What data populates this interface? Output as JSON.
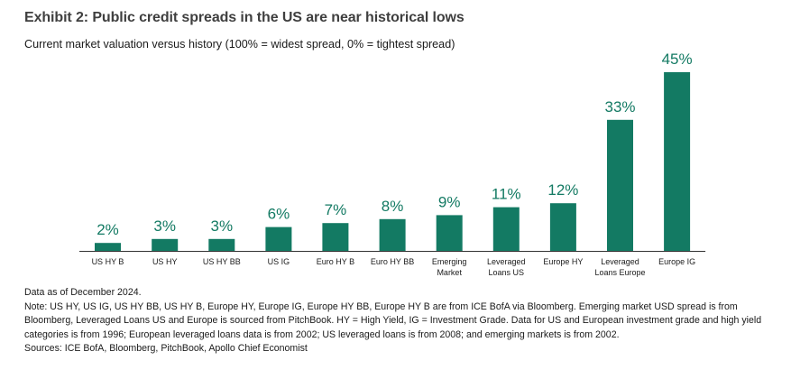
{
  "title": "Exhibit 2: Public credit spreads in the US are near historical lows",
  "subtitle": "Current market valuation versus history (100% = widest spread, 0% = tightest spread)",
  "colors": {
    "bar": "#137a63",
    "label": "#137a63",
    "axis": "#333333"
  },
  "chart_data": {
    "type": "bar",
    "categories": [
      [
        "US HY B"
      ],
      [
        "US HY"
      ],
      [
        "US HY BB"
      ],
      [
        "US IG"
      ],
      [
        "Euro HY B"
      ],
      [
        "Euro HY BB"
      ],
      [
        "Emerging",
        "Market"
      ],
      [
        "Leveraged",
        "Loans US"
      ],
      [
        "Europe HY"
      ],
      [
        "Leveraged",
        "Loans Europe"
      ],
      [
        "Europe IG"
      ]
    ],
    "values": [
      2,
      3,
      3,
      6,
      7,
      8,
      9,
      11,
      12,
      33,
      45
    ],
    "data_labels": [
      "2%",
      "3%",
      "3%",
      "6%",
      "7%",
      "8%",
      "9%",
      "11%",
      "12%",
      "33%",
      "45%"
    ],
    "unit": "%",
    "ylim": [
      0,
      45
    ],
    "grid": false,
    "legend": "none"
  },
  "notes": {
    "as_of": "Data as of December 2024.",
    "note": "Note: US HY, US IG, US HY BB, US HY B, Europe HY, Europe IG, Europe HY BB, Europe HY B are from ICE BofA via Bloomberg. Emerging market USD spread is from Bloomberg, Leveraged Loans US and Europe is sourced from PitchBook. HY = High Yield, IG = Investment Grade. Data for US and European investment grade and high yield categories is from 1996; European leveraged loans data is from 2002; US leveraged loans is from 2008; and emerging markets is from 2002.",
    "sources": "Sources: ICE BofA, Bloomberg, PitchBook, Apollo Chief Economist"
  }
}
